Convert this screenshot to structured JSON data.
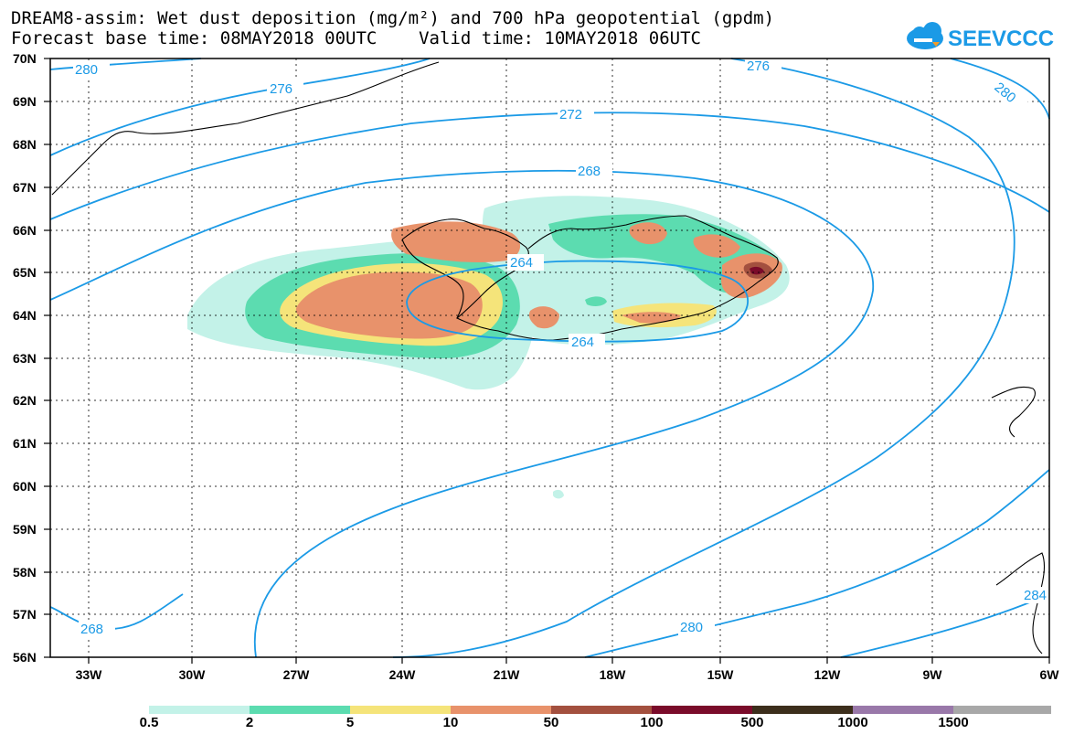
{
  "title": {
    "line1": "DREAM8-assim: Wet dust deposition (mg/m²) and 700 hPa geopotential (gpdm)",
    "line2": "Forecast base time: 08MAY2018 00UTC    Valid time: 10MAY2018 06UTC"
  },
  "logo": {
    "text": "SEEVCCC",
    "color": "#1b9ae6"
  },
  "axes": {
    "lat_labels": [
      "70N",
      "69N",
      "68N",
      "67N",
      "66N",
      "65N",
      "64N",
      "63N",
      "62N",
      "61N",
      "60N",
      "59N",
      "58N",
      "57N",
      "56N"
    ],
    "lon_labels": [
      "33W",
      "30W",
      "27W",
      "24W",
      "21W",
      "18W",
      "15W",
      "12W",
      "9W",
      "6W"
    ]
  },
  "contours": {
    "color": "#1b9ae6",
    "labels": [
      "280",
      "276",
      "280",
      "272",
      "276",
      "268",
      "264",
      "264",
      "268",
      "280",
      "284"
    ]
  },
  "legend": {
    "colors": [
      "#c3f2e8",
      "#5cdcb0",
      "#f5e47a",
      "#e8926b",
      "#a3503f",
      "#7a0b2a",
      "#3c2e1c",
      "#9978a9",
      "#a8a8a8"
    ],
    "labels": [
      "0.5",
      "2",
      "5",
      "10",
      "50",
      "100",
      "500",
      "1000",
      "1500"
    ]
  }
}
